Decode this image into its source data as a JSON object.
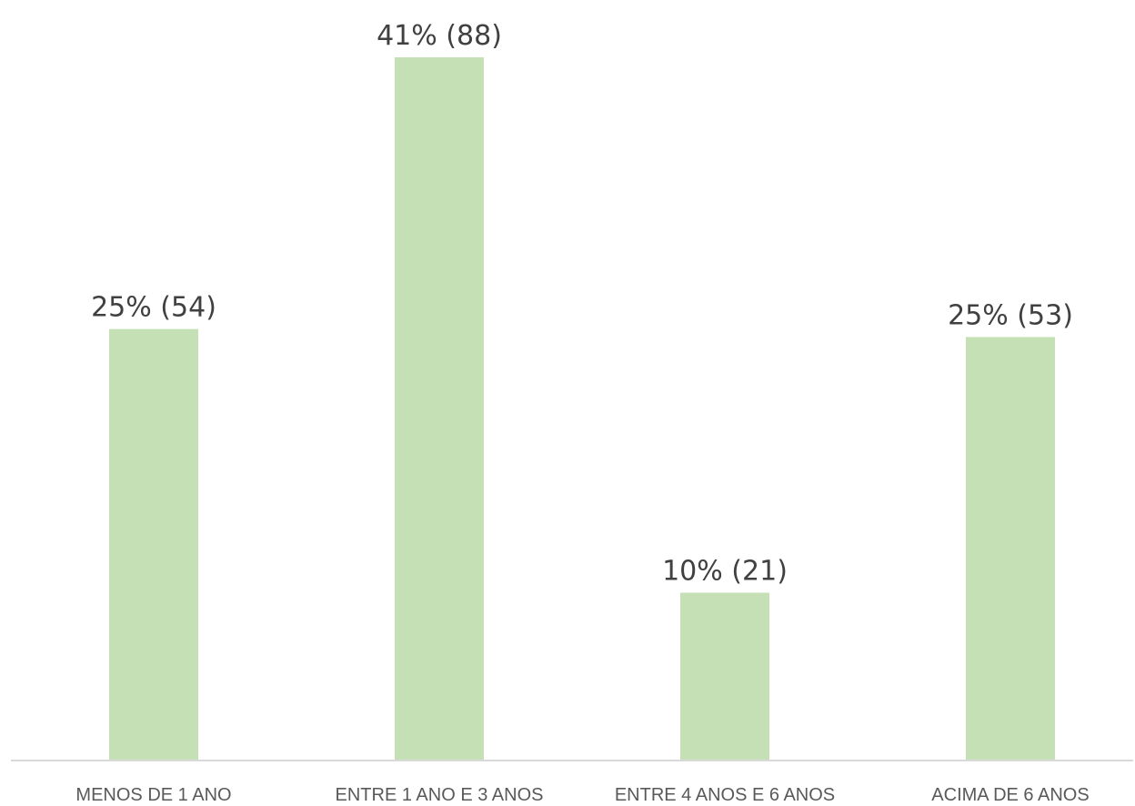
{
  "chart_data": {
    "type": "bar",
    "title": "",
    "xlabel": "",
    "ylabel": "",
    "categories": [
      "MENOS DE 1 ANO",
      "ENTRE 1 ANO E 3 ANOS",
      "ENTRE 4 ANOS E 6 ANOS",
      "ACIMA DE 6 ANOS"
    ],
    "values": [
      54,
      88,
      21,
      53
    ],
    "data_labels": [
      "25% (54)",
      "41% (88)",
      "10% (21)",
      "25% (53)"
    ],
    "ylim": [
      0,
      88
    ],
    "grid": false,
    "legend": "none",
    "bar_color": "#c5e0b4",
    "axis_color": "#d9d9d9"
  }
}
